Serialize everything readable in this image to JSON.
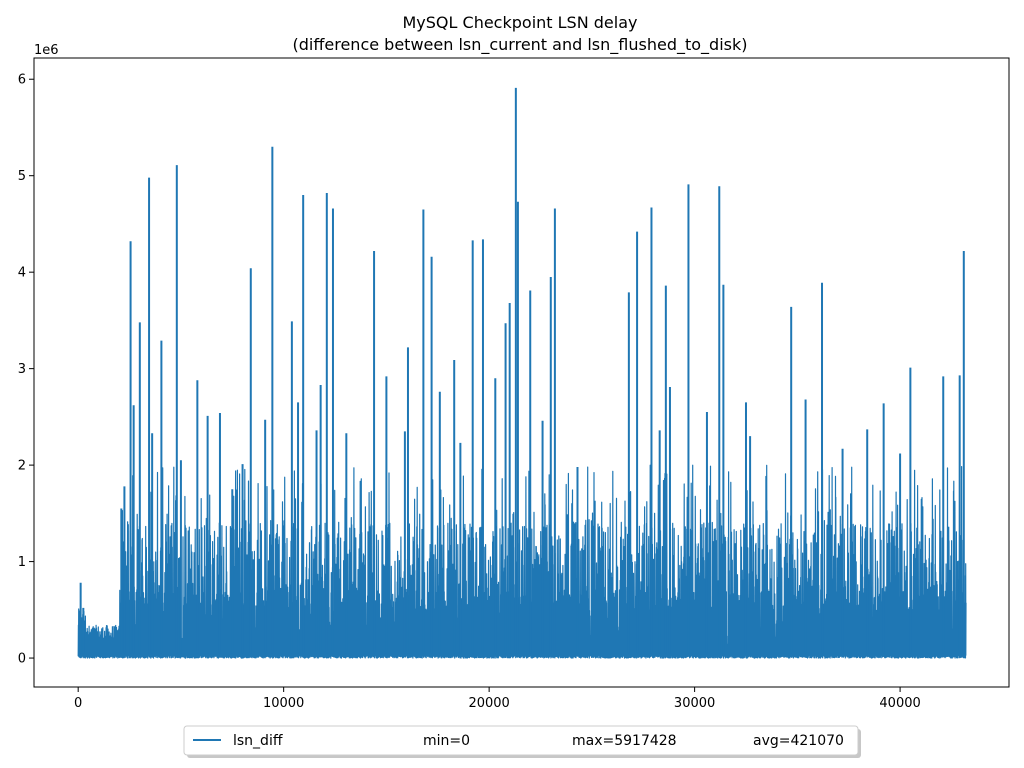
{
  "chart_data": {
    "type": "line",
    "title": "MySQL Checkpoint LSN delay",
    "subtitle": "(difference between lsn_current and lsn_flushed_to_disk)",
    "xlabel": "",
    "ylabel": "",
    "y_offset_label": "1e6",
    "xlim": [
      -2150,
      45300
    ],
    "ylim": [
      -0.3,
      6.22
    ],
    "x_ticks": [
      0,
      10000,
      20000,
      30000,
      40000
    ],
    "x_tick_labels": [
      "0",
      "10000",
      "20000",
      "30000",
      "40000"
    ],
    "y_ticks": [
      0,
      1,
      2,
      3,
      4,
      5,
      6
    ],
    "y_tick_labels": [
      "0",
      "1",
      "2",
      "3",
      "4",
      "5",
      "6"
    ],
    "grid": false,
    "legend_placement": "bottom-center",
    "series": [
      {
        "name": "lsn_diff",
        "color": "#1f77b4",
        "stats": {
          "min": "min=0",
          "max": "max=5917428",
          "avg": "avg=421070"
        },
        "x_range": [
          0,
          43200
        ],
        "spikes": [
          [
            120,
            0.78
          ],
          [
            250,
            0.52
          ],
          [
            2100,
            1.55
          ],
          [
            2250,
            1.78
          ],
          [
            2550,
            4.32
          ],
          [
            2700,
            2.62
          ],
          [
            3000,
            3.48
          ],
          [
            3450,
            4.98
          ],
          [
            3600,
            2.33
          ],
          [
            4050,
            3.29
          ],
          [
            4800,
            5.11
          ],
          [
            5000,
            2.05
          ],
          [
            5800,
            2.88
          ],
          [
            6300,
            2.51
          ],
          [
            6900,
            2.54
          ],
          [
            7500,
            1.75
          ],
          [
            8000,
            2.01
          ],
          [
            8400,
            4.04
          ],
          [
            9100,
            2.47
          ],
          [
            9450,
            5.3
          ],
          [
            10400,
            3.49
          ],
          [
            10700,
            2.65
          ],
          [
            10950,
            4.8
          ],
          [
            11600,
            2.36
          ],
          [
            11800,
            2.83
          ],
          [
            12100,
            4.82
          ],
          [
            12400,
            4.66
          ],
          [
            13050,
            2.33
          ],
          [
            14400,
            4.22
          ],
          [
            15000,
            2.92
          ],
          [
            15900,
            2.35
          ],
          [
            16050,
            3.22
          ],
          [
            16800,
            4.65
          ],
          [
            17200,
            4.16
          ],
          [
            17600,
            2.76
          ],
          [
            18300,
            3.09
          ],
          [
            18600,
            2.23
          ],
          [
            19200,
            4.33
          ],
          [
            19700,
            4.34
          ],
          [
            20300,
            2.9
          ],
          [
            20800,
            3.47
          ],
          [
            21000,
            3.68
          ],
          [
            21300,
            5.91
          ],
          [
            21400,
            4.73
          ],
          [
            22000,
            3.81
          ],
          [
            22600,
            2.46
          ],
          [
            23000,
            3.95
          ],
          [
            23200,
            4.66
          ],
          [
            24300,
            1.98
          ],
          [
            26800,
            3.79
          ],
          [
            27200,
            4.42
          ],
          [
            27900,
            4.67
          ],
          [
            28300,
            2.36
          ],
          [
            28600,
            3.86
          ],
          [
            28800,
            2.81
          ],
          [
            29700,
            4.91
          ],
          [
            30600,
            2.55
          ],
          [
            31200,
            4.89
          ],
          [
            31400,
            3.87
          ],
          [
            32500,
            2.65
          ],
          [
            32700,
            2.3
          ],
          [
            34700,
            3.64
          ],
          [
            35400,
            2.68
          ],
          [
            36200,
            3.89
          ],
          [
            37200,
            2.17
          ],
          [
            38400,
            2.37
          ],
          [
            39200,
            2.64
          ],
          [
            40000,
            2.12
          ],
          [
            40500,
            3.01
          ],
          [
            42100,
            2.92
          ],
          [
            42900,
            2.93
          ],
          [
            43100,
            4.22
          ]
        ]
      }
    ]
  }
}
